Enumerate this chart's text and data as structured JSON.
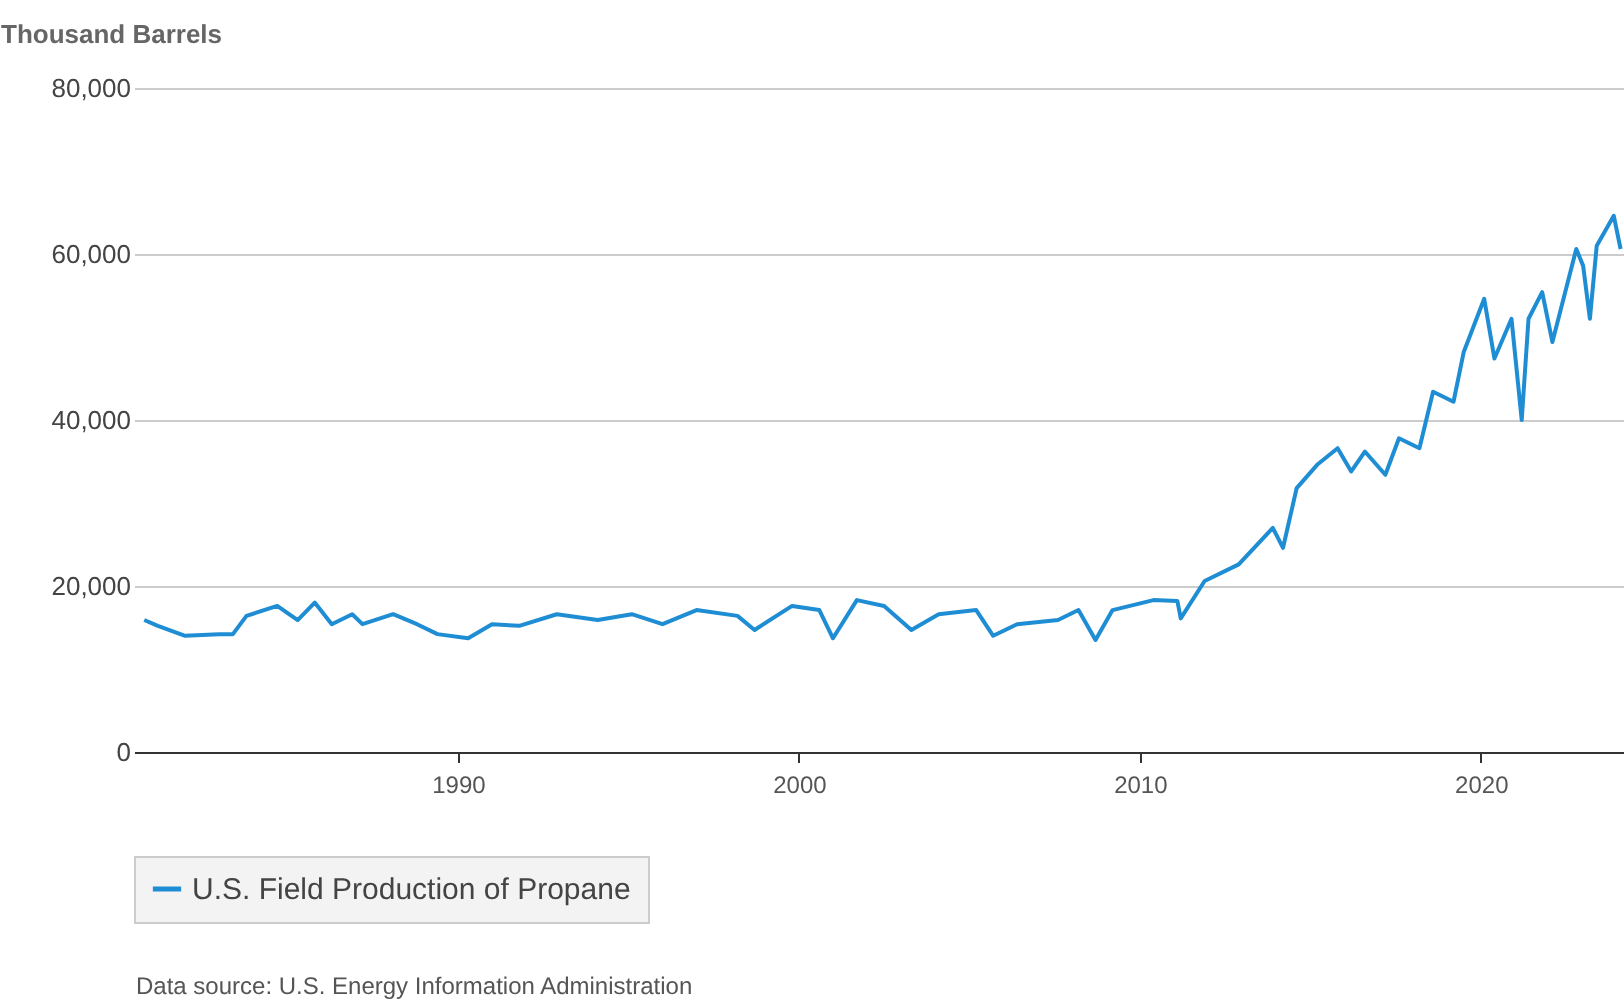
{
  "chart_data": {
    "type": "line",
    "ylabel": "Thousand Barrels",
    "xlim": [
      1980.5,
      2024.2
    ],
    "xticks": [
      1990,
      2000,
      2010,
      2020
    ],
    "ylim": [
      0,
      80000
    ],
    "yticks": [
      0,
      {
        "value": 20000,
        "label": "20,000"
      },
      {
        "value": 40000,
        "label": "40,000"
      },
      {
        "value": 60000,
        "label": "60,000"
      },
      {
        "value": 80000,
        "label": "80,000"
      }
    ],
    "grid": "y",
    "legend": "bottom",
    "annotations": [
      "Data source: U.S. Energy Information Administration"
    ],
    "series": [
      {
        "name": "U.S. Field Production of Propane",
        "color": "#1f8dd3",
        "x": [
          1980.8,
          1981.2,
          1982.0,
          1983.0,
          1983.4,
          1983.8,
          1984.7,
          1985.3,
          1985.8,
          1986.3,
          1986.9,
          1987.2,
          1988.1,
          1988.8,
          1989.4,
          1990.3,
          1991.0,
          1991.8,
          1992.9,
          1994.1,
          1995.1,
          1996.0,
          1997.0,
          1998.2,
          1998.7,
          1999.8,
          2000.6,
          2001.0,
          2001.7,
          2002.5,
          2003.3,
          2004.1,
          2005.2,
          2005.7,
          2006.4,
          2007.6,
          2008.2,
          2008.7,
          2009.2,
          2010.4,
          2011.1,
          2011.2,
          2011.9,
          2012.9,
          2013.9,
          2014.2,
          2014.6,
          2015.2,
          2015.8,
          2016.2,
          2016.6,
          2017.2,
          2017.6,
          2018.2,
          2018.6,
          2019.2,
          2019.5,
          2020.1,
          2020.4,
          2020.9,
          2021.2,
          2021.4,
          2021.8,
          2022.1,
          2022.8,
          2023.0,
          2023.2,
          2023.4,
          2023.9,
          2024.1
        ],
        "values": [
          15900,
          15200,
          14000,
          14200,
          14200,
          16400,
          17600,
          15900,
          18000,
          15400,
          16600,
          15400,
          16600,
          15400,
          14200,
          13700,
          15400,
          15200,
          16600,
          15900,
          16600,
          15400,
          17100,
          16400,
          14700,
          17600,
          17100,
          13700,
          18300,
          17600,
          14700,
          16600,
          17100,
          14000,
          15400,
          15900,
          17100,
          13500,
          17100,
          18300,
          18200,
          16100,
          20600,
          22600,
          27000,
          24600,
          31800,
          34600,
          36600,
          33800,
          36200,
          33400,
          37800,
          36600,
          43400,
          42200,
          48200,
          54600,
          47400,
          52200,
          40000,
          52200,
          55400,
          49400,
          60600,
          58600,
          52200,
          61000,
          64600,
          60600
        ]
      }
    ]
  }
}
